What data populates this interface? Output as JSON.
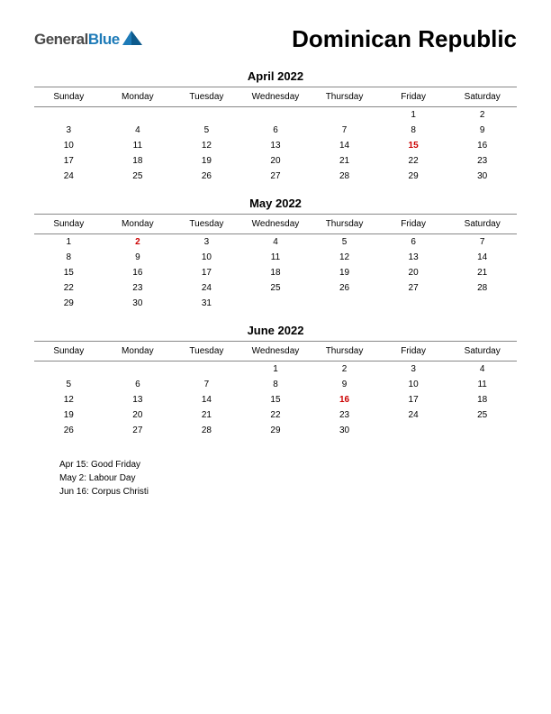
{
  "logo": {
    "text_general": "General",
    "text_blue": "Blue",
    "mark_color_1": "#1e7bb8",
    "mark_color_2": "#0d5a8c"
  },
  "country": "Dominican Republic",
  "day_headers": [
    "Sunday",
    "Monday",
    "Tuesday",
    "Wednesday",
    "Thursday",
    "Friday",
    "Saturday"
  ],
  "months": [
    {
      "title": "April 2022",
      "weeks": [
        [
          "",
          "",
          "",
          "",
          "",
          "1",
          "2"
        ],
        [
          "3",
          "4",
          "5",
          "6",
          "7",
          "8",
          "9"
        ],
        [
          "10",
          "11",
          "12",
          "13",
          "14",
          "15",
          "16"
        ],
        [
          "17",
          "18",
          "19",
          "20",
          "21",
          "22",
          "23"
        ],
        [
          "24",
          "25",
          "26",
          "27",
          "28",
          "29",
          "30"
        ]
      ],
      "holidays": [
        [
          2,
          5
        ]
      ]
    },
    {
      "title": "May 2022",
      "weeks": [
        [
          "1",
          "2",
          "3",
          "4",
          "5",
          "6",
          "7"
        ],
        [
          "8",
          "9",
          "10",
          "11",
          "12",
          "13",
          "14"
        ],
        [
          "15",
          "16",
          "17",
          "18",
          "19",
          "20",
          "21"
        ],
        [
          "22",
          "23",
          "24",
          "25",
          "26",
          "27",
          "28"
        ],
        [
          "29",
          "30",
          "31",
          "",
          "",
          "",
          ""
        ]
      ],
      "holidays": [
        [
          0,
          1
        ]
      ]
    },
    {
      "title": "June 2022",
      "weeks": [
        [
          "",
          "",
          "",
          "1",
          "2",
          "3",
          "4"
        ],
        [
          "5",
          "6",
          "7",
          "8",
          "9",
          "10",
          "11"
        ],
        [
          "12",
          "13",
          "14",
          "15",
          "16",
          "17",
          "18"
        ],
        [
          "19",
          "20",
          "21",
          "22",
          "23",
          "24",
          "25"
        ],
        [
          "26",
          "27",
          "28",
          "29",
          "30",
          "",
          ""
        ]
      ],
      "holidays": [
        [
          2,
          4
        ]
      ]
    }
  ],
  "holiday_list": [
    "Apr 15: Good Friday",
    "May 2: Labour Day",
    "Jun 16: Corpus Christi"
  ],
  "colors": {
    "text": "#000000",
    "holiday": "#cc0000",
    "border": "#888888",
    "background": "#ffffff"
  }
}
